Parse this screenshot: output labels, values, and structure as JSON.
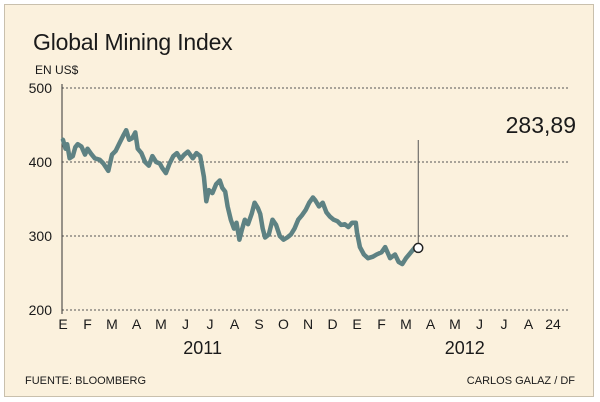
{
  "title": "Global Mining Index",
  "subtitle": "EN US$",
  "source": "FUENTE: BLOOMBERG",
  "credit": "CARLOS GALAZ / DF",
  "chart_data": {
    "type": "line",
    "ylim": [
      200,
      500
    ],
    "yticks": [
      500,
      400,
      300,
      200
    ],
    "grid": "dashed horizontal",
    "line_color": "#5e8283",
    "x_month_labels": [
      "E",
      "F",
      "M",
      "A",
      "M",
      "J",
      "J",
      "A",
      "S",
      "O",
      "N",
      "D",
      "E",
      "F",
      "M",
      "A",
      "M",
      "J",
      "J",
      "A",
      "24"
    ],
    "year_labels": [
      "2011",
      "2012"
    ],
    "last_value_label": "283,89",
    "series": [
      {
        "points": [
          [
            0,
            430
          ],
          [
            0.1,
            418
          ],
          [
            0.17,
            424
          ],
          [
            0.27,
            405
          ],
          [
            0.4,
            408
          ],
          [
            0.5,
            420
          ],
          [
            0.6,
            424
          ],
          [
            0.75,
            421
          ],
          [
            0.9,
            410
          ],
          [
            1.0,
            418
          ],
          [
            1.15,
            411
          ],
          [
            1.3,
            405
          ],
          [
            1.5,
            403
          ],
          [
            1.65,
            398
          ],
          [
            1.85,
            388
          ],
          [
            2.0,
            410
          ],
          [
            2.15,
            415
          ],
          [
            2.3,
            425
          ],
          [
            2.45,
            435
          ],
          [
            2.58,
            443
          ],
          [
            2.7,
            430
          ],
          [
            2.82,
            432
          ],
          [
            2.95,
            440
          ],
          [
            3.05,
            418
          ],
          [
            3.2,
            412
          ],
          [
            3.35,
            400
          ],
          [
            3.5,
            395
          ],
          [
            3.65,
            408
          ],
          [
            3.8,
            400
          ],
          [
            3.95,
            398
          ],
          [
            4.05,
            392
          ],
          [
            4.2,
            385
          ],
          [
            4.35,
            398
          ],
          [
            4.5,
            408
          ],
          [
            4.65,
            412
          ],
          [
            4.8,
            404
          ],
          [
            4.95,
            410
          ],
          [
            5.1,
            414
          ],
          [
            5.3,
            405
          ],
          [
            5.45,
            412
          ],
          [
            5.6,
            408
          ],
          [
            5.75,
            380
          ],
          [
            5.85,
            347
          ],
          [
            5.95,
            362
          ],
          [
            6.1,
            358
          ],
          [
            6.25,
            370
          ],
          [
            6.4,
            375
          ],
          [
            6.5,
            365
          ],
          [
            6.62,
            360
          ],
          [
            6.72,
            340
          ],
          [
            6.85,
            322
          ],
          [
            6.98,
            310
          ],
          [
            7.08,
            318
          ],
          [
            7.2,
            295
          ],
          [
            7.3,
            308
          ],
          [
            7.42,
            322
          ],
          [
            7.55,
            316
          ],
          [
            7.7,
            330
          ],
          [
            7.82,
            345
          ],
          [
            7.95,
            338
          ],
          [
            8.05,
            330
          ],
          [
            8.15,
            310
          ],
          [
            8.25,
            298
          ],
          [
            8.4,
            302
          ],
          [
            8.55,
            322
          ],
          [
            8.7,
            315
          ],
          [
            8.85,
            300
          ],
          [
            9.0,
            295
          ],
          [
            9.15,
            298
          ],
          [
            9.3,
            302
          ],
          [
            9.45,
            310
          ],
          [
            9.6,
            322
          ],
          [
            9.75,
            328
          ],
          [
            9.9,
            335
          ],
          [
            10.05,
            345
          ],
          [
            10.2,
            352
          ],
          [
            10.3,
            348
          ],
          [
            10.45,
            340
          ],
          [
            10.6,
            345
          ],
          [
            10.75,
            332
          ],
          [
            10.9,
            326
          ],
          [
            11.05,
            322
          ],
          [
            11.2,
            320
          ],
          [
            11.35,
            315
          ],
          [
            11.5,
            316
          ],
          [
            11.65,
            312
          ],
          [
            11.8,
            318
          ],
          [
            11.95,
            318
          ],
          [
            12.0,
            305
          ],
          [
            12.12,
            285
          ],
          [
            12.28,
            275
          ],
          [
            12.45,
            270
          ],
          [
            12.65,
            272
          ],
          [
            12.8,
            275
          ],
          [
            13.0,
            278
          ],
          [
            13.15,
            285
          ],
          [
            13.35,
            270
          ],
          [
            13.55,
            275
          ],
          [
            13.7,
            265
          ],
          [
            13.85,
            262
          ],
          [
            14.0,
            270
          ],
          [
            14.2,
            278
          ],
          [
            14.35,
            284
          ],
          [
            14.5,
            283.89
          ]
        ]
      }
    ]
  }
}
